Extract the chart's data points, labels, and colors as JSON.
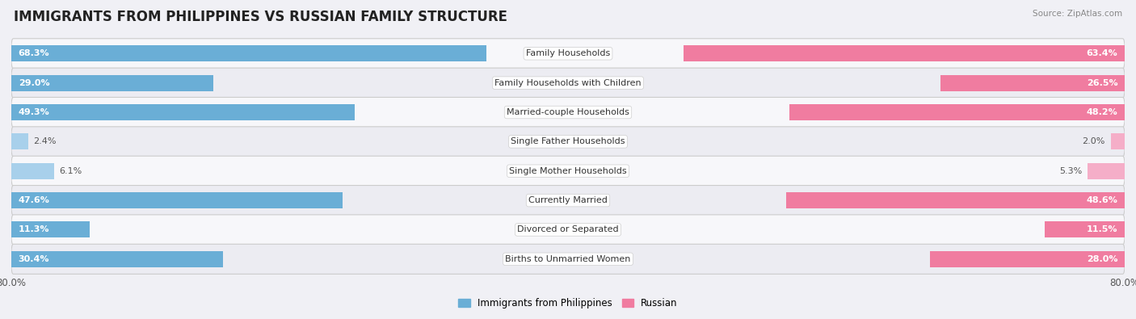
{
  "title": "IMMIGRANTS FROM PHILIPPINES VS RUSSIAN FAMILY STRUCTURE",
  "source": "Source: ZipAtlas.com",
  "categories": [
    "Family Households",
    "Family Households with Children",
    "Married-couple Households",
    "Single Father Households",
    "Single Mother Households",
    "Currently Married",
    "Divorced or Separated",
    "Births to Unmarried Women"
  ],
  "philippines_values": [
    68.3,
    29.0,
    49.3,
    2.4,
    6.1,
    47.6,
    11.3,
    30.4
  ],
  "russian_values": [
    63.4,
    26.5,
    48.2,
    2.0,
    5.3,
    48.6,
    11.5,
    28.0
  ],
  "philippines_color": "#6aaed6",
  "russian_color": "#f07ca0",
  "philippines_color_light": "#a8d0eb",
  "russian_color_light": "#f5aec8",
  "philippines_label": "Immigrants from Philippines",
  "russian_label": "Russian",
  "background_color": "#f0f0f5",
  "row_colors": [
    "#f7f7fa",
    "#ececf2"
  ],
  "max_value": 80.0,
  "axis_label_left": "80.0%",
  "axis_label_right": "80.0%",
  "bar_height": 0.55,
  "title_fontsize": 12,
  "value_fontsize": 8,
  "category_fontsize": 8
}
